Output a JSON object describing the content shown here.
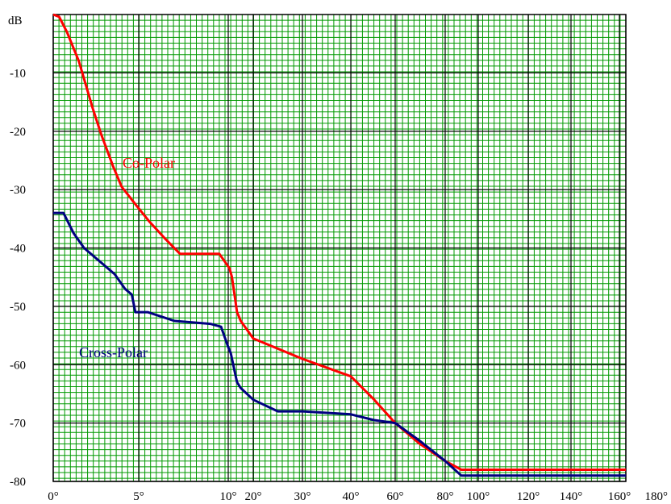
{
  "chart_data": {
    "type": "line",
    "title": "",
    "xlabel": "",
    "ylabel": "dB",
    "ylim": [
      -80,
      0
    ],
    "y_ticks": [
      -80,
      -70,
      -60,
      -50,
      -40,
      -30,
      -20,
      -10
    ],
    "x_tick_labels": [
      "0°",
      "5°",
      "10°",
      "20°",
      "30°",
      "40°",
      "60°",
      "80°",
      "100°",
      "120°",
      "140°",
      "160°",
      "180°"
    ],
    "x_tick_values": [
      0,
      5,
      10,
      20,
      30,
      40,
      60,
      80,
      100,
      120,
      140,
      160,
      180
    ],
    "grid": true,
    "colors": {
      "grid_minor": "#009900",
      "grid_major": "#000000",
      "background": "#ffffff"
    },
    "series": [
      {
        "name": "Co-Polar",
        "color": "#ff0000",
        "points": [
          [
            0,
            0
          ],
          [
            0.35,
            -0.4
          ],
          [
            0.8,
            -3
          ],
          [
            1.5,
            -8
          ],
          [
            2.3,
            -16
          ],
          [
            2.8,
            -20.5
          ],
          [
            3.5,
            -26
          ],
          [
            4.0,
            -29.5
          ],
          [
            4.8,
            -32.5
          ],
          [
            5.6,
            -35.5
          ],
          [
            6.5,
            -38.5
          ],
          [
            7.3,
            -41
          ],
          [
            8.8,
            -41
          ],
          [
            9.5,
            -41
          ],
          [
            10.5,
            -43.5
          ],
          [
            11.5,
            -45
          ],
          [
            12.5,
            -48
          ],
          [
            13.5,
            -51
          ],
          [
            15,
            -52.5
          ],
          [
            20,
            -55.5
          ],
          [
            30,
            -59
          ],
          [
            40,
            -62
          ],
          [
            50,
            -66
          ],
          [
            60,
            -70
          ],
          [
            70,
            -73.5
          ],
          [
            80,
            -76.5
          ],
          [
            90,
            -78
          ],
          [
            100,
            -78
          ],
          [
            140,
            -78
          ],
          [
            180,
            -78
          ]
        ]
      },
      {
        "name": "Cross-Polar",
        "color": "#000080",
        "points": [
          [
            0,
            -34
          ],
          [
            0.6,
            -34
          ],
          [
            1.2,
            -37.5
          ],
          [
            1.8,
            -40
          ],
          [
            2.8,
            -42.5
          ],
          [
            3.6,
            -44.5
          ],
          [
            4.2,
            -47
          ],
          [
            4.6,
            -48
          ],
          [
            4.8,
            -51
          ],
          [
            5.5,
            -51
          ],
          [
            7,
            -52.5
          ],
          [
            9,
            -53
          ],
          [
            9.6,
            -53.5
          ],
          [
            10,
            -57
          ],
          [
            11,
            -58
          ],
          [
            12,
            -60
          ],
          [
            13.5,
            -63
          ],
          [
            15,
            -64
          ],
          [
            20,
            -66
          ],
          [
            25,
            -68
          ],
          [
            30,
            -68
          ],
          [
            40,
            -68.5
          ],
          [
            50,
            -69.5
          ],
          [
            60,
            -70
          ],
          [
            70,
            -73
          ],
          [
            80,
            -76.5
          ],
          [
            90,
            -79
          ],
          [
            100,
            -79
          ],
          [
            180,
            -79
          ]
        ]
      }
    ]
  }
}
